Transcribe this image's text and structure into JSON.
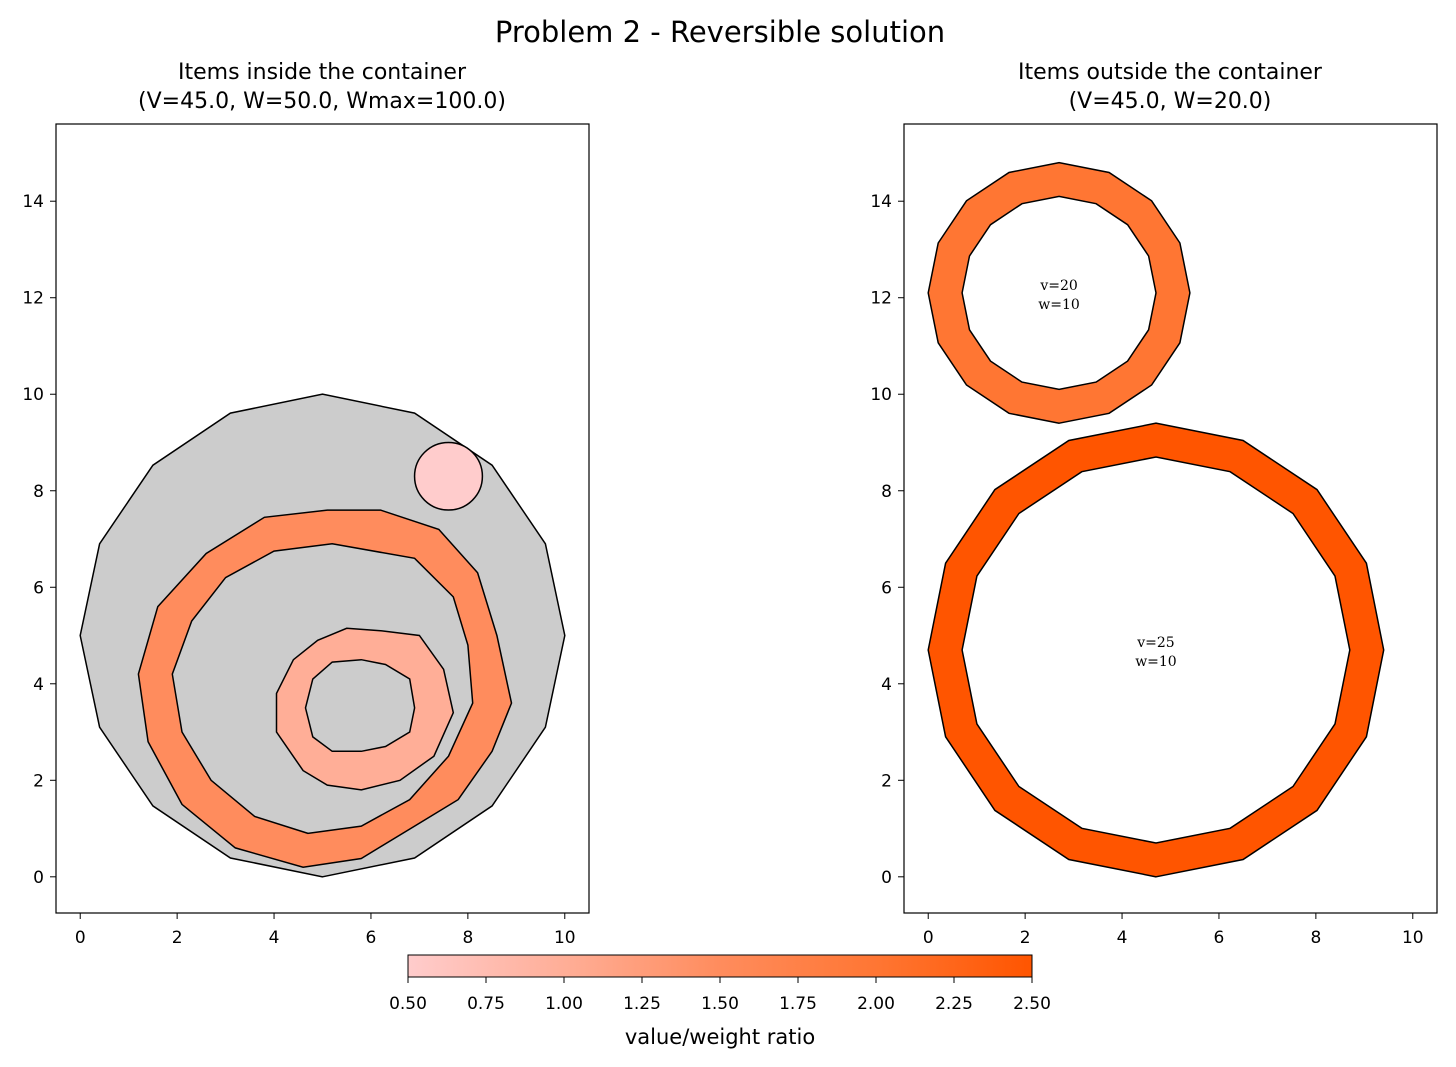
{
  "chart_data": {
    "type": "polygon-packing",
    "title": "Problem 2 - Reversible solution",
    "colorbar": {
      "label": "value/weight ratio",
      "range": [
        0.5,
        2.5
      ],
      "ticks": [
        "0.50",
        "0.75",
        "1.00",
        "1.25",
        "1.50",
        "1.75",
        "2.00",
        "2.25",
        "2.50"
      ],
      "colors": [
        "#ffcccc",
        "#ff5500"
      ]
    },
    "panels": [
      {
        "title_line1": "Items inside the container",
        "title_line2": "(V=45.0, W=50.0, Wmax=100.0)",
        "xlim": [
          -0.5,
          10.5
        ],
        "ylim": [
          -0.75,
          15.6
        ],
        "xticks": [
          0,
          2,
          4,
          6,
          8,
          10
        ],
        "yticks": [
          0,
          2,
          4,
          6,
          8,
          10,
          12,
          14
        ],
        "container": {
          "color": "#cccccc",
          "points": [
            [
              5,
              0
            ],
            [
              6.9,
              0.39
            ],
            [
              8.5,
              1.47
            ],
            [
              9.6,
              3.1
            ],
            [
              10,
              5
            ],
            [
              9.6,
              6.9
            ],
            [
              8.5,
              8.53
            ],
            [
              6.9,
              9.61
            ],
            [
              5,
              10
            ],
            [
              3.1,
              9.61
            ],
            [
              1.5,
              8.53
            ],
            [
              0.4,
              6.9
            ],
            [
              0,
              5
            ],
            [
              0.4,
              3.1
            ],
            [
              1.5,
              1.47
            ],
            [
              3.1,
              0.39
            ]
          ]
        },
        "items": [
          {
            "ratio": 0.5,
            "color": "#ffcccc",
            "shape": "circle",
            "center": [
              7.6,
              8.3
            ],
            "radius": 0.7
          },
          {
            "ratio": 1.5,
            "color": "#ff8c5d",
            "outer": [
              [
                5.8,
                0.38
              ],
              [
                6.9,
                1.05
              ],
              [
                7.8,
                1.6
              ],
              [
                8.5,
                2.6
              ],
              [
                8.9,
                3.6
              ],
              [
                8.6,
                5.0
              ],
              [
                8.2,
                6.3
              ],
              [
                7.4,
                7.2
              ],
              [
                6.2,
                7.6
              ],
              [
                5.1,
                7.6
              ],
              [
                3.8,
                7.45
              ],
              [
                2.6,
                6.7
              ],
              [
                1.6,
                5.6
              ],
              [
                1.2,
                4.2
              ],
              [
                1.4,
                2.8
              ],
              [
                2.1,
                1.5
              ],
              [
                3.2,
                0.6
              ],
              [
                4.6,
                0.2
              ]
            ],
            "inner": [
              [
                5.8,
                1.05
              ],
              [
                6.8,
                1.6
              ],
              [
                7.6,
                2.5
              ],
              [
                8.1,
                3.6
              ],
              [
                8.0,
                4.8
              ],
              [
                7.7,
                5.8
              ],
              [
                6.9,
                6.6
              ],
              [
                5.2,
                6.9
              ],
              [
                4.0,
                6.75
              ],
              [
                3.0,
                6.2
              ],
              [
                2.3,
                5.3
              ],
              [
                1.9,
                4.2
              ],
              [
                2.1,
                3.0
              ],
              [
                2.7,
                2.0
              ],
              [
                3.6,
                1.25
              ],
              [
                4.7,
                0.9
              ]
            ]
          },
          {
            "ratio": 1.0,
            "color": "#ffae97",
            "outer": [
              [
                5.8,
                1.8
              ],
              [
                6.6,
                2.0
              ],
              [
                7.3,
                2.5
              ],
              [
                7.7,
                3.4
              ],
              [
                7.5,
                4.3
              ],
              [
                7.0,
                5.0
              ],
              [
                6.2,
                5.1
              ],
              [
                5.5,
                5.15
              ],
              [
                4.9,
                4.9
              ],
              [
                4.4,
                4.5
              ],
              [
                4.05,
                3.8
              ],
              [
                4.05,
                3.0
              ],
              [
                4.6,
                2.2
              ],
              [
                5.1,
                1.9
              ]
            ]
          },
          {
            "ratio": 1.0,
            "color": "#cccccc",
            "outer": [
              [
                5.8,
                2.6
              ],
              [
                6.3,
                2.7
              ],
              [
                6.8,
                3.0
              ],
              [
                6.9,
                3.5
              ],
              [
                6.8,
                4.1
              ],
              [
                6.3,
                4.4
              ],
              [
                5.8,
                4.5
              ],
              [
                5.2,
                4.45
              ],
              [
                4.8,
                4.1
              ],
              [
                4.65,
                3.5
              ],
              [
                4.8,
                2.9
              ],
              [
                5.2,
                2.6
              ]
            ]
          }
        ]
      },
      {
        "title_line1": "Items outside the container",
        "title_line2": "(V=45.0, W=20.0)",
        "xlim": [
          -0.5,
          10.5
        ],
        "ylim": [
          -0.75,
          15.6
        ],
        "xticks": [
          0,
          2,
          4,
          6,
          8,
          10
        ],
        "yticks": [
          0,
          2,
          4,
          6,
          8,
          10,
          12,
          14
        ],
        "items": [
          {
            "ratio": 2.0,
            "color": "#ff7633",
            "center": [
              2.7,
              12.1
            ],
            "r_outer": 2.7,
            "r_inner": 2.0,
            "sides": 16,
            "label_v": "v=20",
            "label_w": "w=10"
          },
          {
            "ratio": 2.5,
            "color": "#ff5500",
            "center": [
              4.7,
              4.7
            ],
            "r_outer": 4.7,
            "r_inner": 4.0,
            "sides": 16,
            "label_v": "v=25",
            "label_w": "w=10"
          }
        ]
      }
    ]
  }
}
